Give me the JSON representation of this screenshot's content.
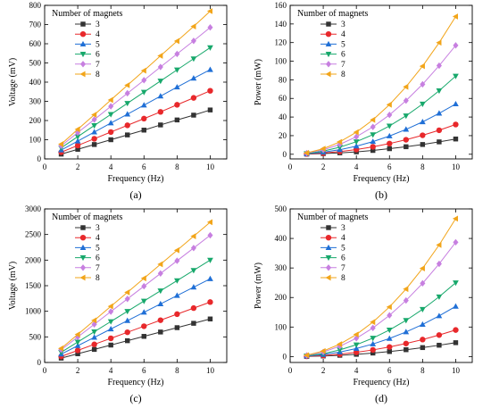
{
  "chart_data": [
    {
      "id": "a",
      "type": "line",
      "letter": "(a)",
      "xlabel": "Frequency (Hz)",
      "ylabel": "Voltage (mV)",
      "xlim": [
        0,
        11
      ],
      "ylim": [
        0,
        800
      ],
      "xticks": [
        0,
        2,
        4,
        6,
        8,
        10
      ],
      "yticks": [
        0,
        100,
        200,
        300,
        400,
        500,
        600,
        700,
        800
      ],
      "grid": false,
      "legend_title": "Number of magnets",
      "legend_position": "top-left",
      "x": [
        1,
        2,
        3,
        4,
        5,
        6,
        7,
        8,
        9,
        10
      ],
      "series": [
        {
          "name": "3",
          "color": "#333333",
          "marker": "square",
          "values": [
            25,
            50,
            75,
            100,
            125,
            150,
            177,
            203,
            228,
            255
          ]
        },
        {
          "name": "4",
          "color": "#e8282b",
          "marker": "circle",
          "values": [
            35,
            70,
            105,
            140,
            175,
            210,
            245,
            282,
            318,
            355
          ]
        },
        {
          "name": "5",
          "color": "#1f6fd6",
          "marker": "triangle-up",
          "values": [
            46,
            93,
            140,
            187,
            233,
            280,
            327,
            374,
            420,
            465
          ]
        },
        {
          "name": "6",
          "color": "#17a86b",
          "marker": "triangle-down",
          "values": [
            58,
            116,
            174,
            232,
            290,
            348,
            406,
            464,
            522,
            580
          ]
        },
        {
          "name": "7",
          "color": "#c77fe0",
          "marker": "diamond",
          "values": [
            68,
            137,
            205,
            274,
            342,
            410,
            479,
            547,
            615,
            685
          ]
        },
        {
          "name": "8",
          "color": "#f2a51a",
          "marker": "triangle-left",
          "values": [
            77,
            154,
            230,
            307,
            384,
            460,
            537,
            614,
            690,
            770
          ]
        }
      ]
    },
    {
      "id": "b",
      "type": "line",
      "letter": "(b)",
      "xlabel": "Frequency (Hz)",
      "ylabel": "Power (mW)",
      "xlim": [
        0,
        11
      ],
      "ylim": [
        -5,
        160
      ],
      "xticks": [
        0,
        2,
        4,
        6,
        8,
        10
      ],
      "yticks": [
        0,
        20,
        40,
        60,
        80,
        100,
        120,
        140,
        160
      ],
      "grid": false,
      "legend_title": "Number of magnets",
      "legend_position": "top-left",
      "x": [
        1,
        2,
        3,
        4,
        5,
        6,
        7,
        8,
        9,
        10
      ],
      "series": [
        {
          "name": "3",
          "color": "#333333",
          "marker": "square",
          "values": [
            0.2,
            0.7,
            1.5,
            2.6,
            4.1,
            6.0,
            8.1,
            10.5,
            13.3,
            16.4
          ]
        },
        {
          "name": "4",
          "color": "#e8282b",
          "marker": "circle",
          "values": [
            0.3,
            1.3,
            2.9,
            5.1,
            8.0,
            11.5,
            15.6,
            20.4,
            25.8,
            32
          ]
        },
        {
          "name": "5",
          "color": "#1f6fd6",
          "marker": "triangle-up",
          "values": [
            0.5,
            2.2,
            4.9,
            8.7,
            13.6,
            19.6,
            26.7,
            34.8,
            44,
            54
          ]
        },
        {
          "name": "6",
          "color": "#17a86b",
          "marker": "triangle-down",
          "values": [
            0.8,
            3.4,
            7.6,
            13.5,
            21.1,
            30.4,
            41.3,
            54,
            68.3,
            84
          ]
        },
        {
          "name": "7",
          "color": "#c77fe0",
          "marker": "diamond",
          "values": [
            1.2,
            4.7,
            10.6,
            18.8,
            29.4,
            42.3,
            57.6,
            75.2,
            95.2,
            117
          ]
        },
        {
          "name": "8",
          "color": "#f2a51a",
          "marker": "triangle-left",
          "values": [
            1.5,
            5.9,
            13.3,
            23.7,
            37,
            53.3,
            72.5,
            94.7,
            119.9,
            148
          ]
        }
      ]
    },
    {
      "id": "c",
      "type": "line",
      "letter": "(c)",
      "xlabel": "Frequency (Hz)",
      "ylabel": "Voltage (mV)",
      "xlim": [
        0,
        11
      ],
      "ylim": [
        0,
        3000
      ],
      "xticks": [
        0,
        2,
        4,
        6,
        8,
        10
      ],
      "yticks": [
        0,
        500,
        1000,
        1500,
        2000,
        2500,
        3000
      ],
      "grid": false,
      "legend_title": "Number of magnets",
      "legend_position": "top-left",
      "x": [
        1,
        2,
        3,
        4,
        5,
        6,
        7,
        8,
        9,
        10
      ],
      "series": [
        {
          "name": "3",
          "color": "#333333",
          "marker": "square",
          "values": [
            85,
            170,
            255,
            340,
            425,
            510,
            595,
            680,
            765,
            850
          ]
        },
        {
          "name": "4",
          "color": "#e8282b",
          "marker": "circle",
          "values": [
            118,
            236,
            354,
            472,
            590,
            708,
            826,
            944,
            1062,
            1180
          ]
        },
        {
          "name": "5",
          "color": "#1f6fd6",
          "marker": "triangle-up",
          "values": [
            163,
            327,
            490,
            654,
            817,
            980,
            1144,
            1307,
            1471,
            1635
          ]
        },
        {
          "name": "6",
          "color": "#17a86b",
          "marker": "triangle-down",
          "values": [
            200,
            400,
            600,
            800,
            1000,
            1200,
            1400,
            1600,
            1800,
            2000
          ]
        },
        {
          "name": "7",
          "color": "#c77fe0",
          "marker": "diamond",
          "values": [
            248,
            497,
            745,
            994,
            1242,
            1490,
            1739,
            1987,
            2236,
            2485
          ]
        },
        {
          "name": "8",
          "color": "#f2a51a",
          "marker": "triangle-left",
          "values": [
            274,
            548,
            822,
            1096,
            1370,
            1644,
            1918,
            2192,
            2466,
            2740
          ]
        }
      ]
    },
    {
      "id": "d",
      "type": "line",
      "letter": "(d)",
      "xlabel": "Frequency (Hz)",
      "ylabel": "Power (mW)",
      "xlim": [
        0,
        11
      ],
      "ylim": [
        -20,
        500
      ],
      "xticks": [
        0,
        2,
        4,
        6,
        8,
        10
      ],
      "yticks": [
        0,
        100,
        200,
        300,
        400,
        500
      ],
      "grid": false,
      "legend_title": "Number of magnets",
      "legend_position": "top-left",
      "x": [
        1,
        2,
        3,
        4,
        5,
        6,
        7,
        8,
        9,
        10
      ],
      "series": [
        {
          "name": "3",
          "color": "#333333",
          "marker": "square",
          "values": [
            0.5,
            2,
            4.3,
            7.6,
            11.9,
            17,
            23.2,
            30.4,
            38.4,
            47
          ]
        },
        {
          "name": "4",
          "color": "#e8282b",
          "marker": "circle",
          "values": [
            0.9,
            3.6,
            8.1,
            14.4,
            22.5,
            32.4,
            44.1,
            57.6,
            72.9,
            90
          ]
        },
        {
          "name": "5",
          "color": "#1f6fd6",
          "marker": "triangle-up",
          "values": [
            1.7,
            6.8,
            15.3,
            27.2,
            42.5,
            61.2,
            83.3,
            108.8,
            137.7,
            170
          ]
        },
        {
          "name": "6",
          "color": "#17a86b",
          "marker": "triangle-down",
          "values": [
            2.5,
            10,
            22.5,
            40,
            62.5,
            90,
            122.5,
            160,
            202.5,
            250
          ]
        },
        {
          "name": "7",
          "color": "#c77fe0",
          "marker": "diamond",
          "values": [
            3.9,
            15.5,
            34.9,
            62,
            96.9,
            139.5,
            189.9,
            248,
            313.9,
            387
          ]
        },
        {
          "name": "8",
          "color": "#f2a51a",
          "marker": "triangle-left",
          "values": [
            4.7,
            18.7,
            42,
            74.7,
            116.7,
            168,
            228.7,
            298.7,
            378,
            467
          ]
        }
      ]
    }
  ]
}
